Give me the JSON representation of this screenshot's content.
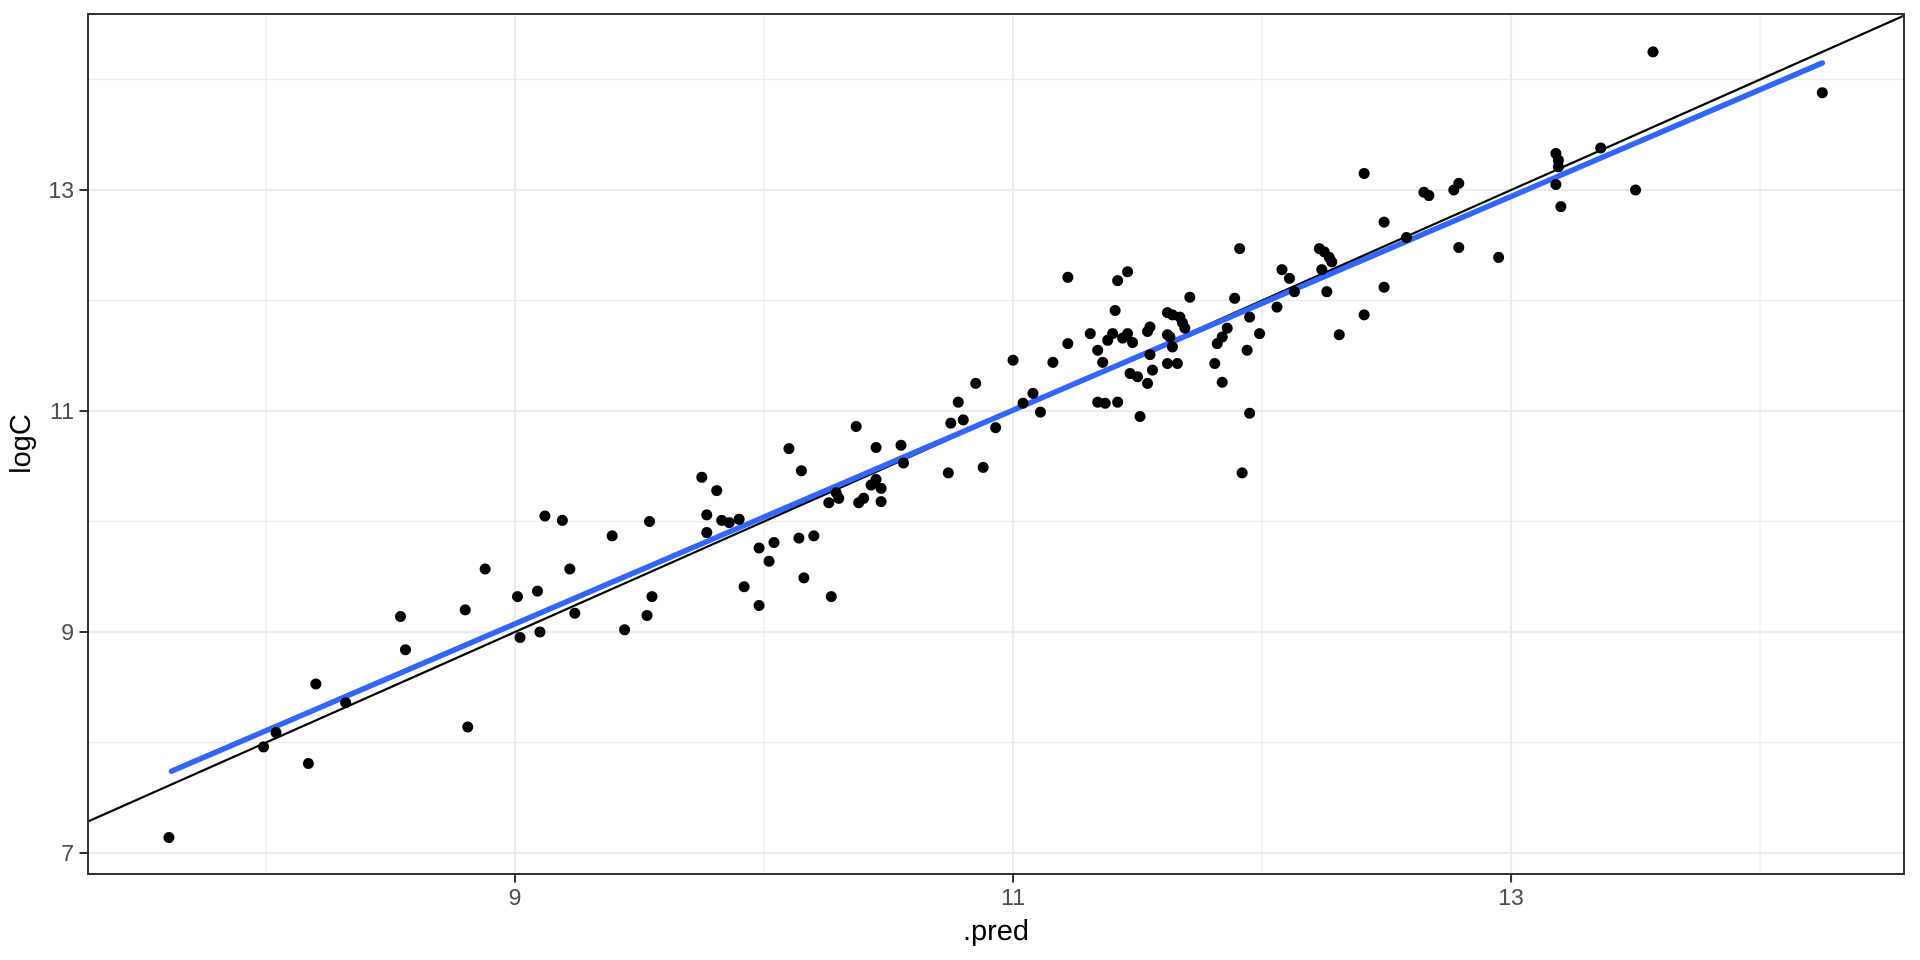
{
  "chart_data": {
    "type": "scatter",
    "title": "",
    "xlabel": ".pred",
    "ylabel": "logC",
    "x_ticks": [
      9,
      11,
      13
    ],
    "y_ticks": [
      7,
      9,
      11,
      13
    ],
    "x_minor_breaks": [
      8,
      10,
      12,
      14
    ],
    "y_minor_breaks": [
      8,
      10,
      12,
      14
    ],
    "xlim": [
      7.285,
      14.578
    ],
    "ylim": [
      6.81,
      14.593
    ],
    "grid": "major+minor",
    "legend_position": "none",
    "colors": {
      "points": "#000000",
      "identity_line": "#000000",
      "smooth_line": "#3366FF",
      "grid_major": "#EBEBEB",
      "grid_minor": "#EBEBEB",
      "panel_border": "#333333",
      "tick_mark": "#333333",
      "tick_label": "#4d4d4d",
      "axis_title": "#000000",
      "background": "#ffffff"
    },
    "reference_line": {
      "name": "identity y = x",
      "slope": 1,
      "intercept": 0
    },
    "smooth_line": {
      "name": "linear fit",
      "start": [
        7.62,
        7.74
      ],
      "end": [
        14.25,
        14.15
      ]
    },
    "series": [
      {
        "name": "predictions-vs-observed",
        "points": [
          [
            7.61,
            7.14
          ],
          [
            7.99,
            7.96
          ],
          [
            8.04,
            8.09
          ],
          [
            8.17,
            7.81
          ],
          [
            8.2,
            8.53
          ],
          [
            8.32,
            8.36
          ],
          [
            8.54,
            9.14
          ],
          [
            8.56,
            8.84
          ],
          [
            8.81,
            8.14
          ],
          [
            8.8,
            9.2
          ],
          [
            8.88,
            9.57
          ],
          [
            9.01,
            9.32
          ],
          [
            9.02,
            8.95
          ],
          [
            9.09,
            9.37
          ],
          [
            9.1,
            9.0
          ],
          [
            9.12,
            10.05
          ],
          [
            9.19,
            10.01
          ],
          [
            9.22,
            9.57
          ],
          [
            9.24,
            9.17
          ],
          [
            9.39,
            9.87
          ],
          [
            9.44,
            9.02
          ],
          [
            9.53,
            9.15
          ],
          [
            9.54,
            10.0
          ],
          [
            9.55,
            9.32
          ],
          [
            9.75,
            10.4
          ],
          [
            9.77,
            10.06
          ],
          [
            9.77,
            9.9
          ],
          [
            9.81,
            10.28
          ],
          [
            9.83,
            10.01
          ],
          [
            9.86,
            9.99
          ],
          [
            9.9,
            10.02
          ],
          [
            9.92,
            9.41
          ],
          [
            9.98,
            9.76
          ],
          [
            9.98,
            9.24
          ],
          [
            10.02,
            9.64
          ],
          [
            10.04,
            9.81
          ],
          [
            10.1,
            10.66
          ],
          [
            10.14,
            9.85
          ],
          [
            10.15,
            10.46
          ],
          [
            10.16,
            9.49
          ],
          [
            10.2,
            9.87
          ],
          [
            10.26,
            10.17
          ],
          [
            10.27,
            9.32
          ],
          [
            10.29,
            10.26
          ],
          [
            10.3,
            10.21
          ],
          [
            10.37,
            10.86
          ],
          [
            10.38,
            10.17
          ],
          [
            10.4,
            10.21
          ],
          [
            10.43,
            10.33
          ],
          [
            10.45,
            10.38
          ],
          [
            10.45,
            10.67
          ],
          [
            10.47,
            10.3
          ],
          [
            10.47,
            10.18
          ],
          [
            10.55,
            10.69
          ],
          [
            10.56,
            10.53
          ],
          [
            10.74,
            10.44
          ],
          [
            10.75,
            10.89
          ],
          [
            10.78,
            11.08
          ],
          [
            10.8,
            10.92
          ],
          [
            10.85,
            11.25
          ],
          [
            10.88,
            10.49
          ],
          [
            10.93,
            10.85
          ],
          [
            11.0,
            11.46
          ],
          [
            11.04,
            11.07
          ],
          [
            11.08,
            11.16
          ],
          [
            11.11,
            10.99
          ],
          [
            11.16,
            11.44
          ],
          [
            11.22,
            11.61
          ],
          [
            11.22,
            12.21
          ],
          [
            11.31,
            11.7
          ],
          [
            11.34,
            11.55
          ],
          [
            11.34,
            11.08
          ],
          [
            11.36,
            11.44
          ],
          [
            11.37,
            11.07
          ],
          [
            11.38,
            11.64
          ],
          [
            11.4,
            11.7
          ],
          [
            11.41,
            11.91
          ],
          [
            11.42,
            12.18
          ],
          [
            11.42,
            11.08
          ],
          [
            11.44,
            11.66
          ],
          [
            11.46,
            12.26
          ],
          [
            11.46,
            11.7
          ],
          [
            11.47,
            11.34
          ],
          [
            11.48,
            11.62
          ],
          [
            11.5,
            11.31
          ],
          [
            11.51,
            10.95
          ],
          [
            11.54,
            11.72
          ],
          [
            11.54,
            11.25
          ],
          [
            11.56,
            11.37
          ],
          [
            11.55,
            11.76
          ],
          [
            11.55,
            11.51
          ],
          [
            11.62,
            11.43
          ],
          [
            11.62,
            11.89
          ],
          [
            11.62,
            11.69
          ],
          [
            11.63,
            11.67
          ],
          [
            11.64,
            11.87
          ],
          [
            11.64,
            11.58
          ],
          [
            11.66,
            11.43
          ],
          [
            11.67,
            11.85
          ],
          [
            11.68,
            11.8
          ],
          [
            11.69,
            11.75
          ],
          [
            11.71,
            12.03
          ],
          [
            11.81,
            11.43
          ],
          [
            11.82,
            11.61
          ],
          [
            11.84,
            11.26
          ],
          [
            11.84,
            11.67
          ],
          [
            11.86,
            11.75
          ],
          [
            11.89,
            12.02
          ],
          [
            11.91,
            12.47
          ],
          [
            11.94,
            11.55
          ],
          [
            11.95,
            11.85
          ],
          [
            11.95,
            10.98
          ],
          [
            11.92,
            10.44
          ],
          [
            11.99,
            11.7
          ],
          [
            12.06,
            11.94
          ],
          [
            12.08,
            12.28
          ],
          [
            12.11,
            12.2
          ],
          [
            12.13,
            12.08
          ],
          [
            12.23,
            12.47
          ],
          [
            12.24,
            12.28
          ],
          [
            12.25,
            12.44
          ],
          [
            12.26,
            12.08
          ],
          [
            12.27,
            12.39
          ],
          [
            12.28,
            12.35
          ],
          [
            12.31,
            11.69
          ],
          [
            12.41,
            11.87
          ],
          [
            12.41,
            13.15
          ],
          [
            12.49,
            12.71
          ],
          [
            12.49,
            12.12
          ],
          [
            12.58,
            12.57
          ],
          [
            12.65,
            12.98
          ],
          [
            12.67,
            12.95
          ],
          [
            12.77,
            13.0
          ],
          [
            12.79,
            13.06
          ],
          [
            12.79,
            12.48
          ],
          [
            12.95,
            12.39
          ],
          [
            13.18,
            13.33
          ],
          [
            13.19,
            13.27
          ],
          [
            13.19,
            13.21
          ],
          [
            13.18,
            13.05
          ],
          [
            13.2,
            12.85
          ],
          [
            13.36,
            13.38
          ],
          [
            13.5,
            13.0
          ],
          [
            13.57,
            14.25
          ],
          [
            14.25,
            13.88
          ]
        ]
      }
    ]
  }
}
